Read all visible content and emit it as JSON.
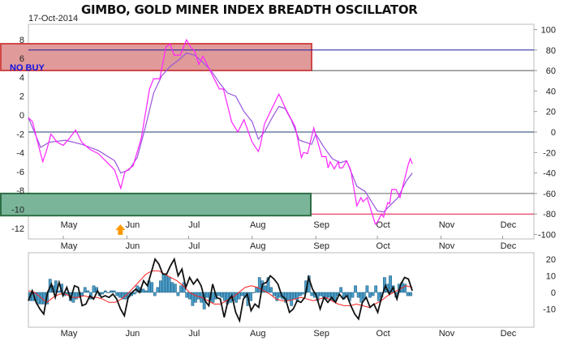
{
  "header": {
    "title": "GIMBO, GOLD MINER INDEX BREADTH OSCILLATOR",
    "date": "17-Oct-2014"
  },
  "colors": {
    "fast_line": "#ff22ff",
    "slow_line": "#9955dd",
    "no_buy_zone": "#e09a9a",
    "buy_zone": "#7ab59a",
    "bars": "#4a9cc8",
    "black_line": "#111111",
    "red_line": "#ff2020",
    "arrow": "#ff9900"
  },
  "chart_data": [
    {
      "type": "line",
      "title": "GIMBO, GOLD MINER INDEX BREADTH OSCILLATOR",
      "x_unit": "days since 14-Apr-2014",
      "months": [
        {
          "label": "May",
          "day": 17
        },
        {
          "label": "Jun",
          "day": 48
        },
        {
          "label": "Jul",
          "day": 78
        },
        {
          "label": "Aug",
          "day": 109
        },
        {
          "label": "Sep",
          "day": 140
        },
        {
          "label": "Oct",
          "day": 170
        },
        {
          "label": "Nov",
          "day": 201
        },
        {
          "label": "Dec",
          "day": 231
        }
      ],
      "left_axis": {
        "ticks": [
          "8",
          "6",
          "4",
          "2",
          "0",
          "-2",
          "-4",
          "-6",
          "-8",
          "-10",
          "-12"
        ],
        "values": [
          8,
          6,
          4,
          2,
          0,
          -2,
          -4,
          -6,
          -8,
          -10,
          -12
        ]
      },
      "right_axis": {
        "ticks": [
          "100",
          "80",
          "60",
          "40",
          "20",
          "0",
          "-20",
          "-40",
          "-60",
          "-80",
          "-100"
        ],
        "values": [
          100,
          80,
          60,
          40,
          20,
          0,
          -20,
          -40,
          -60,
          -80,
          -100
        ],
        "ylim": [
          -100,
          100
        ]
      },
      "zones": [
        {
          "label": "NO BUY",
          "from": 60,
          "to": 80
        },
        {
          "label": "",
          "from": -80,
          "to": -60
        }
      ],
      "reference_lines": [
        80,
        60,
        0,
        -60,
        -80
      ],
      "annotation_arrow_day": 44,
      "series": [
        {
          "name": "fast",
          "points": [
            [
              0,
              14
            ],
            [
              2,
              10
            ],
            [
              4,
              -6
            ],
            [
              7,
              -29
            ],
            [
              9,
              -17
            ],
            [
              11,
              -2
            ],
            [
              14,
              -10
            ],
            [
              17,
              -13
            ],
            [
              20,
              -6
            ],
            [
              23,
              2
            ],
            [
              26,
              -10
            ],
            [
              30,
              -17
            ],
            [
              34,
              -21
            ],
            [
              38,
              -29
            ],
            [
              42,
              -37
            ],
            [
              45,
              -55
            ],
            [
              47,
              -39
            ],
            [
              51,
              -33
            ],
            [
              55,
              -6
            ],
            [
              59,
              42
            ],
            [
              61,
              52
            ],
            [
              64,
              52
            ],
            [
              67,
              83
            ],
            [
              69,
              86
            ],
            [
              71,
              75
            ],
            [
              74,
              75
            ],
            [
              77,
              90
            ],
            [
              79,
              83
            ],
            [
              81,
              79
            ],
            [
              83,
              66
            ],
            [
              85,
              74
            ],
            [
              87,
              66
            ],
            [
              90,
              54
            ],
            [
              93,
              42
            ],
            [
              95,
              42
            ],
            [
              99,
              10
            ],
            [
              102,
              0
            ],
            [
              105,
              12
            ],
            [
              109,
              -10
            ],
            [
              112,
              -19
            ],
            [
              113,
              -13
            ],
            [
              115,
              8
            ],
            [
              122,
              37
            ],
            [
              123,
              33
            ],
            [
              125,
              24
            ],
            [
              130,
              5
            ],
            [
              133,
              -25
            ],
            [
              134,
              -20
            ],
            [
              136,
              -21
            ],
            [
              139,
              4
            ],
            [
              140,
              -3
            ],
            [
              143,
              -24
            ],
            [
              145,
              -24
            ],
            [
              146,
              -35
            ],
            [
              147,
              -29
            ],
            [
              149,
              -36
            ],
            [
              151,
              -29
            ],
            [
              151.5,
              -35
            ],
            [
              153,
              -35
            ],
            [
              155,
              -28
            ],
            [
              157,
              -37
            ],
            [
              160,
              -72
            ],
            [
              162,
              -64
            ],
            [
              163,
              -68
            ],
            [
              165,
              -64
            ],
            [
              169,
              -90
            ],
            [
              170,
              -88
            ],
            [
              172,
              -80
            ],
            [
              173,
              -83
            ],
            [
              175,
              -69
            ],
            [
              176,
              -70
            ],
            [
              177,
              -56
            ],
            [
              179,
              -56
            ],
            [
              181,
              -64
            ],
            [
              185,
              -32
            ],
            [
              186,
              -26
            ],
            [
              187,
              -31
            ]
          ]
        },
        {
          "name": "slow",
          "points": [
            [
              0,
              14
            ],
            [
              6,
              -15
            ],
            [
              10,
              -10
            ],
            [
              18,
              -8
            ],
            [
              26,
              -12
            ],
            [
              34,
              -18
            ],
            [
              42,
              -28
            ],
            [
              45,
              -40
            ],
            [
              49,
              -37
            ],
            [
              53,
              -25
            ],
            [
              57,
              5
            ],
            [
              61,
              38
            ],
            [
              65,
              55
            ],
            [
              69,
              64
            ],
            [
              73,
              70
            ],
            [
              77,
              77
            ],
            [
              81,
              75
            ],
            [
              85,
              68
            ],
            [
              89,
              60
            ],
            [
              93,
              48
            ],
            [
              97,
              38
            ],
            [
              101,
              35
            ],
            [
              105,
              20
            ],
            [
              109,
              10
            ],
            [
              112,
              -7
            ],
            [
              115,
              0
            ],
            [
              119,
              15
            ],
            [
              122,
              25
            ],
            [
              125,
              23
            ],
            [
              128,
              12
            ],
            [
              132,
              -8
            ],
            [
              138,
              -12
            ],
            [
              140,
              -2
            ],
            [
              144,
              -15
            ],
            [
              148,
              -26
            ],
            [
              152,
              -30
            ],
            [
              155,
              -28
            ],
            [
              160,
              -53
            ],
            [
              164,
              -58
            ],
            [
              170,
              -77
            ],
            [
              173,
              -78
            ],
            [
              176,
              -72
            ],
            [
              180,
              -64
            ],
            [
              184,
              -48
            ],
            [
              187,
              -40
            ]
          ]
        }
      ]
    },
    {
      "type": "bar",
      "x_range_days": [
        0,
        187
      ],
      "right_axis": {
        "ticks": [
          "20",
          "10",
          "0",
          "-10"
        ],
        "values": [
          20,
          10,
          0,
          -10
        ],
        "ylim": [
          -20,
          24
        ]
      },
      "bars": [
        -5,
        -5,
        -5,
        -7,
        -7,
        -7,
        -7,
        8,
        4,
        7,
        1,
        5,
        -2,
        -1,
        -5,
        -6,
        -4,
        -3,
        -2,
        3,
        1,
        -4,
        4,
        3,
        -2,
        -1,
        1,
        0,
        1,
        1,
        -2,
        -3,
        -4,
        -4,
        -3,
        -2,
        -1,
        4,
        3,
        2,
        1,
        7,
        6,
        -2,
        3,
        7,
        11,
        10,
        9,
        6,
        5,
        -2,
        4,
        6,
        -3,
        -4,
        -8,
        -6,
        -4,
        -6,
        -10,
        -3,
        -5,
        -6,
        -4,
        -2,
        -3,
        -5,
        -7,
        -6,
        -5,
        -6,
        -4,
        -2,
        -3,
        -8,
        -5,
        0,
        3,
        9,
        7,
        4,
        9,
        3,
        -2,
        -5,
        -3,
        -4,
        -6,
        -5,
        -8,
        -4,
        -5,
        -2,
        -1,
        7,
        10,
        -2,
        -3,
        -5,
        -2,
        -3,
        -4,
        -3,
        -5,
        -5,
        -2,
        3,
        -4,
        -2,
        -5,
        -3,
        4,
        -3,
        -6,
        -4,
        4,
        -3,
        -2,
        4,
        -5,
        -3,
        9,
        5,
        10,
        4,
        -3,
        5,
        6,
        5,
        -2,
        -2
      ],
      "black_line": [
        -5,
        1,
        -6,
        -10,
        -13,
        0,
        5,
        -3,
        6,
        -2,
        3,
        -4,
        4,
        3,
        -8,
        -7,
        -2,
        -4,
        1,
        -3,
        -2,
        -3,
        -1,
        -4,
        -10,
        -14,
        -3,
        0,
        2,
        0,
        7,
        4,
        12,
        20,
        17,
        11,
        11,
        16,
        20,
        10,
        14,
        3,
        9,
        5,
        8,
        4,
        -5,
        -8,
        5,
        -3,
        -4,
        -15,
        -5,
        -2,
        -12,
        -17,
        -4,
        -1,
        -11,
        -7,
        -9,
        5,
        6,
        10,
        8,
        5,
        -2,
        -4,
        -12,
        -10,
        -5,
        -6,
        -3,
        9,
        2,
        -2,
        -10,
        -3,
        -6,
        -3,
        -6,
        -1,
        -4,
        -2,
        -8,
        -13,
        -16,
        -6,
        -3,
        -9,
        -7,
        -12,
        -3,
        4,
        -1,
        3,
        -4,
        5,
        9,
        8,
        1
      ],
      "red_line": [
        1,
        0,
        -3,
        -6,
        -3,
        -1,
        -1,
        -3,
        -3,
        -2,
        -3,
        -3,
        -4,
        -6,
        -6,
        -4,
        -1,
        3,
        7,
        11,
        13,
        13,
        11,
        9,
        7,
        4,
        0,
        -2,
        -3,
        -5,
        -7,
        -7,
        -5,
        -3,
        0,
        3,
        4,
        3,
        1,
        -1,
        -4,
        -5,
        -5,
        -4,
        -3,
        -4,
        -5,
        -4,
        -3,
        -5,
        -7,
        -8,
        -8,
        -7,
        -8,
        -9,
        -7,
        -5,
        -2,
        0,
        2,
        4,
        3
      ]
    }
  ]
}
